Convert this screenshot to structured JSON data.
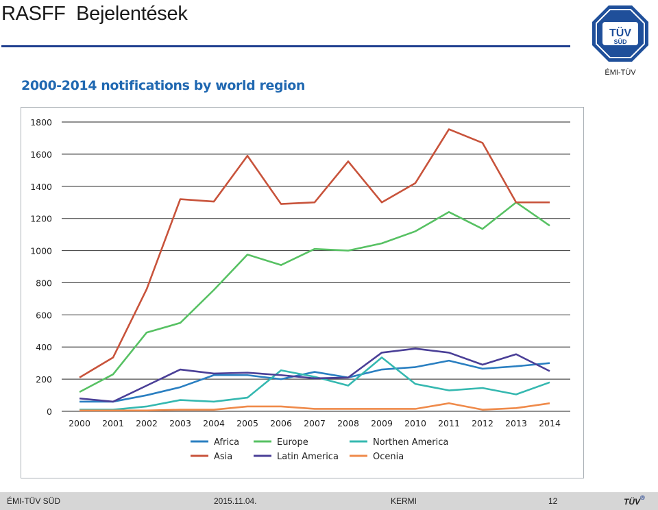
{
  "slide": {
    "title": "RASFF  Bejelentések",
    "logo_text_top": "TÜV",
    "logo_text_bottom": "SÜD",
    "logo_caption": "ÉMI-TÜV"
  },
  "footer": {
    "org": "ÉMI-TÜV SÜD",
    "date": "2015.11.04.",
    "author": "KERMI",
    "page": "12",
    "brand": "TÜV",
    "brand_mark": "®"
  },
  "colors": {
    "Africa": "#2a7fc1",
    "Asia": "#c8533b",
    "Europe": "#57c163",
    "Latin America": "#4a3f97",
    "Northen America": "#35b8b0",
    "Ocenia": "#ef8a4a",
    "title_blue": "#2068b1",
    "rule_blue": "#1f3f8f"
  },
  "chart_data": {
    "type": "line",
    "title": "2000-2014 notifications by world region",
    "xlabel": "",
    "ylabel": "",
    "x": [
      "2000",
      "2001",
      "2002",
      "2003",
      "2004",
      "2005",
      "2006",
      "2007",
      "2008",
      "2009",
      "2010",
      "2011",
      "2012",
      "2013",
      "2014"
    ],
    "ylim": [
      0,
      1800
    ],
    "yticks": [
      0,
      200,
      400,
      600,
      800,
      1000,
      1200,
      1400,
      1600,
      1800
    ],
    "grid": true,
    "legend_position": "bottom",
    "series": [
      {
        "name": "Africa",
        "values": [
          60,
          60,
          100,
          150,
          225,
          225,
          200,
          245,
          210,
          260,
          275,
          315,
          265,
          280,
          300
        ]
      },
      {
        "name": "Europe",
        "values": [
          120,
          230,
          490,
          550,
          755,
          975,
          910,
          1010,
          1000,
          1045,
          1120,
          1240,
          1135,
          1300,
          1155
        ]
      },
      {
        "name": "Northen America",
        "values": [
          10,
          10,
          30,
          70,
          60,
          85,
          255,
          215,
          160,
          335,
          170,
          130,
          145,
          105,
          180
        ]
      },
      {
        "name": "Asia",
        "values": [
          210,
          335,
          760,
          1320,
          1305,
          1590,
          1290,
          1300,
          1555,
          1300,
          1420,
          1755,
          1670,
          1300,
          1300
        ]
      },
      {
        "name": "Latin America",
        "values": [
          80,
          60,
          160,
          260,
          235,
          240,
          225,
          205,
          210,
          365,
          390,
          365,
          290,
          355,
          250
        ]
      },
      {
        "name": "Ocenia",
        "values": [
          5,
          5,
          5,
          10,
          10,
          30,
          30,
          15,
          15,
          15,
          15,
          50,
          10,
          20,
          50
        ]
      }
    ]
  }
}
